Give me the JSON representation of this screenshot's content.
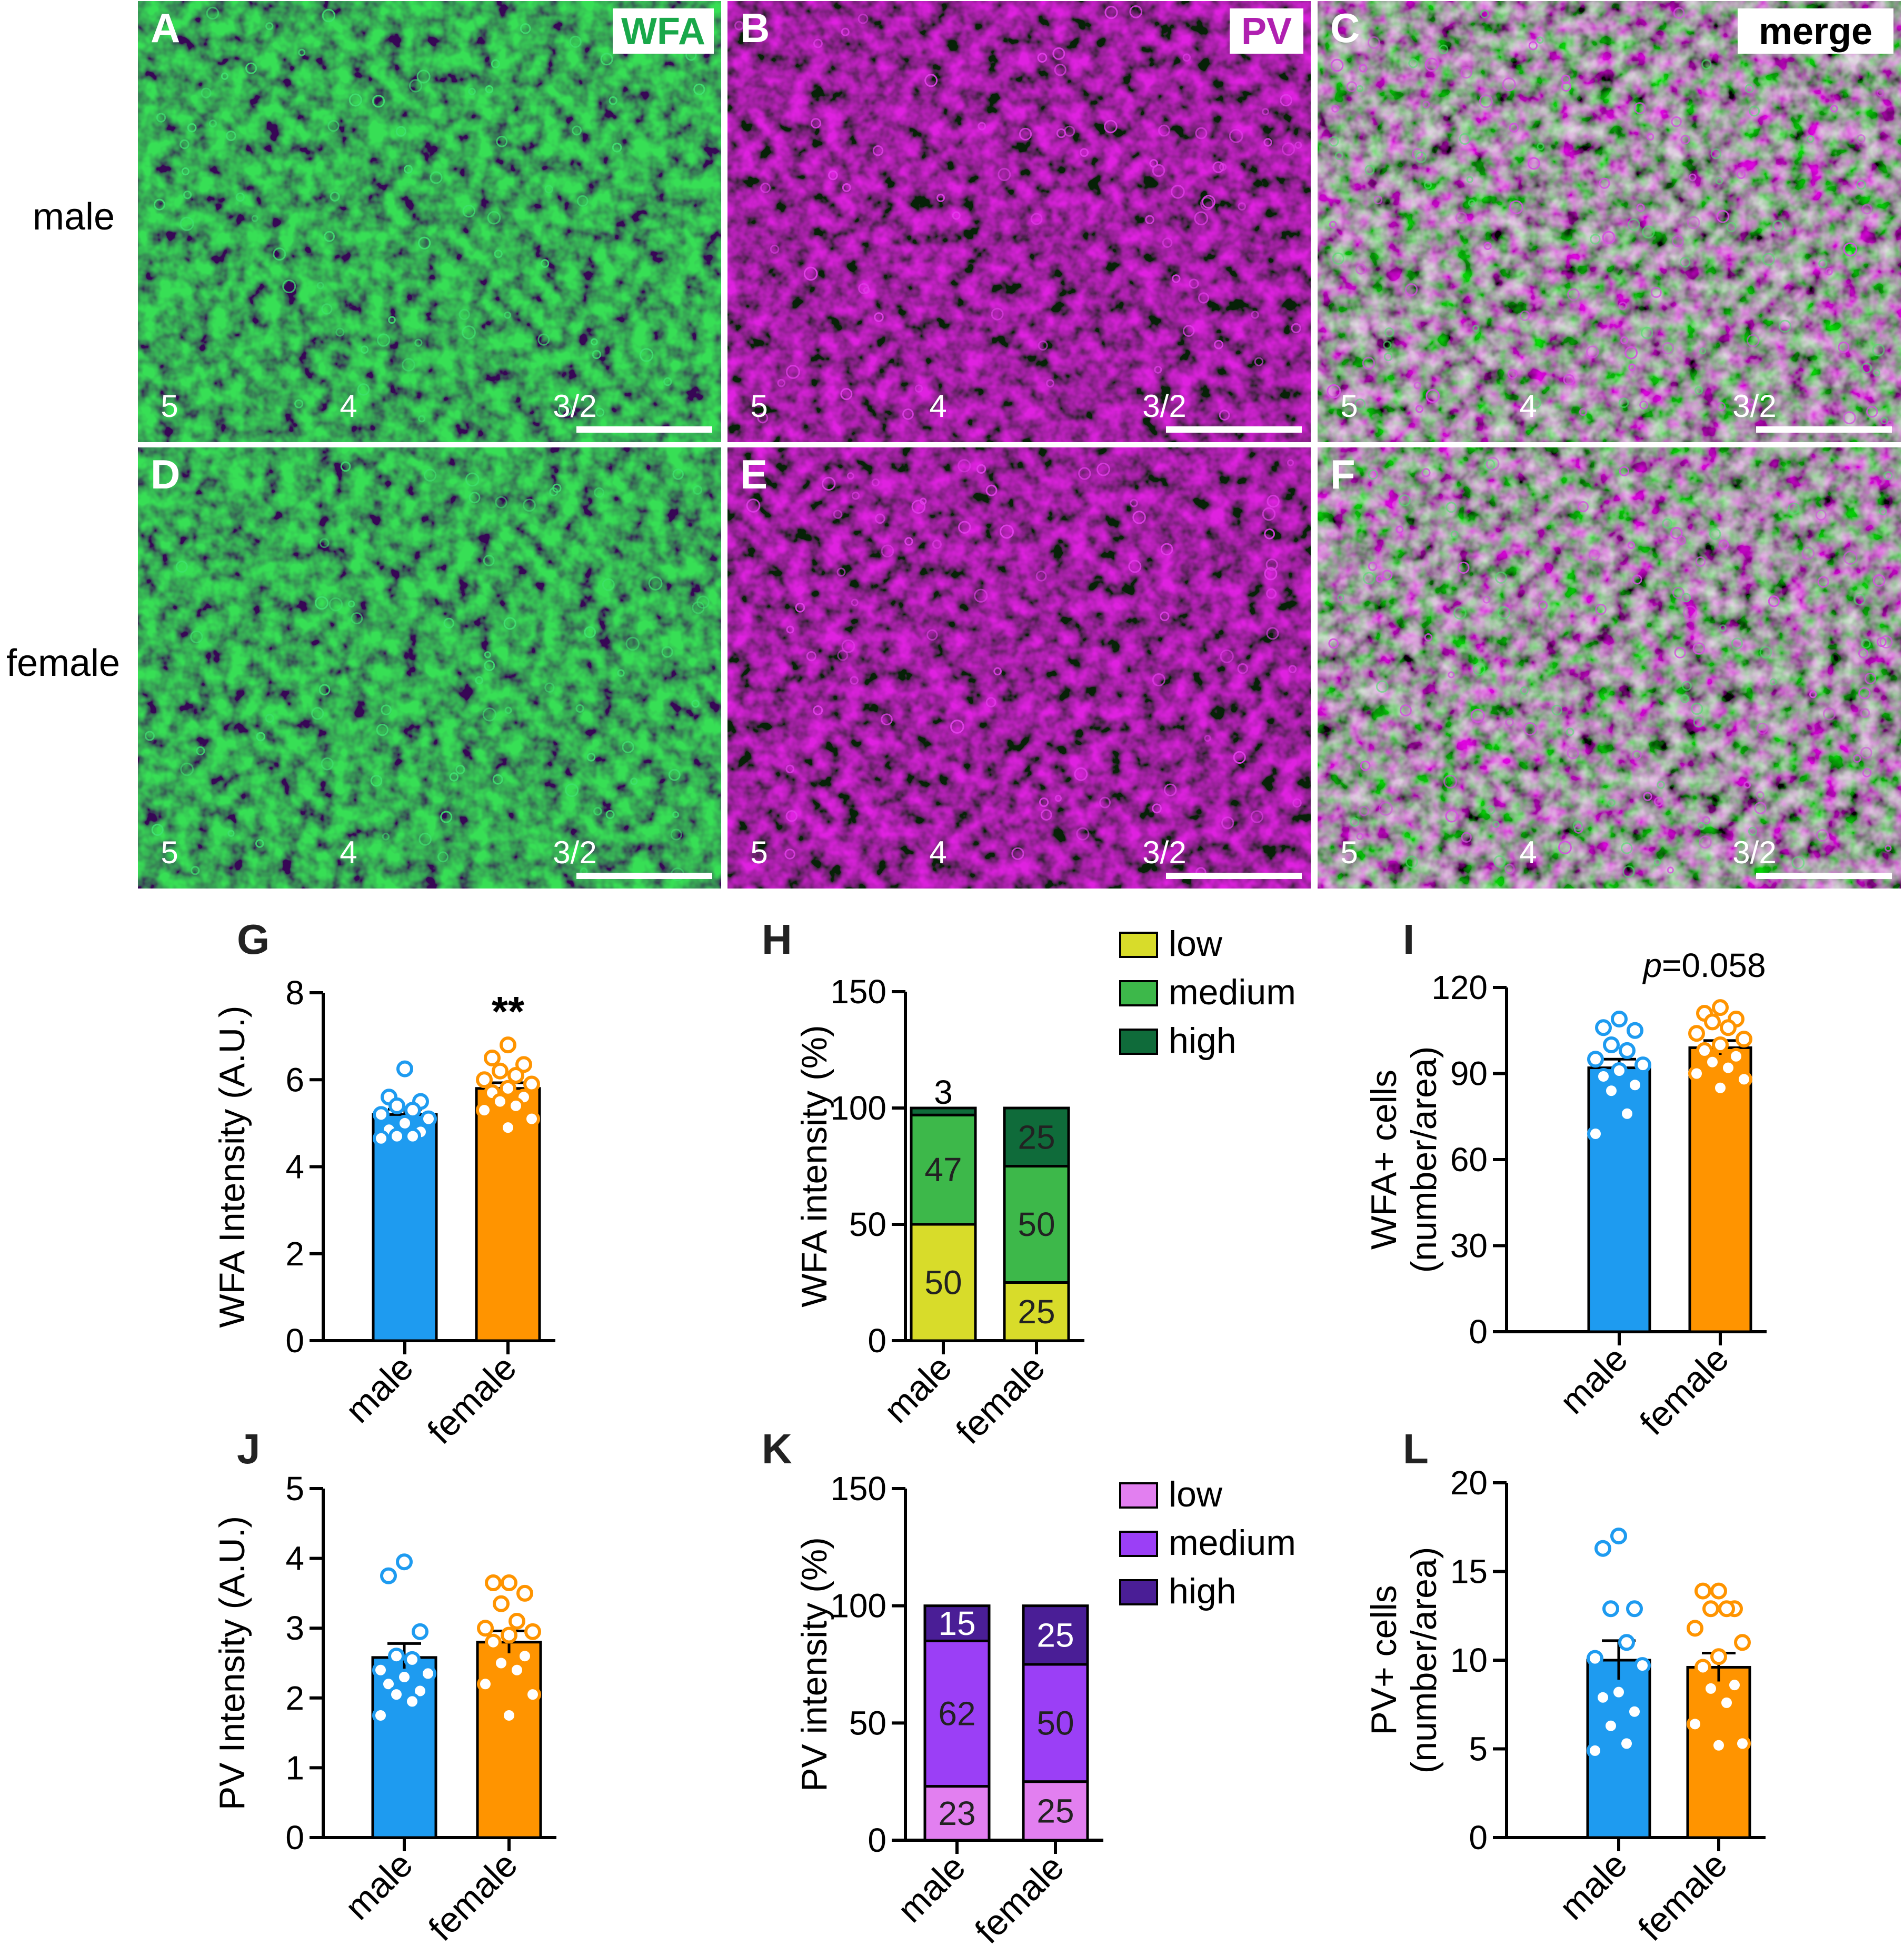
{
  "colors": {
    "male": "#1e9bf0",
    "female": "#ff9400",
    "wfa_low": "#d8dc2a",
    "wfa_medium": "#3db84a",
    "wfa_high": "#0f6b3a",
    "pv_low": "#e27ff0",
    "pv_medium": "#9b3ff6",
    "pv_high": "#4a1e96",
    "wfa_label": "#19a84a",
    "pv_label": "#b020b0"
  },
  "micrographs": {
    "row_labels": [
      "male",
      "female"
    ],
    "panels": [
      {
        "letter": "A",
        "channel": "WFA",
        "stain": "green",
        "layers": [
          "5",
          "4",
          "3/2"
        ]
      },
      {
        "letter": "B",
        "channel": "PV",
        "stain": "magenta",
        "layers": [
          "5",
          "4",
          "3/2"
        ]
      },
      {
        "letter": "C",
        "channel": "merge",
        "stain": "merge",
        "layers": [
          "5",
          "4",
          "3/2"
        ]
      },
      {
        "letter": "D",
        "channel": "",
        "stain": "green",
        "layers": [
          "5",
          "4",
          "3/2"
        ]
      },
      {
        "letter": "E",
        "channel": "",
        "stain": "magenta",
        "layers": [
          "5",
          "4",
          "3/2"
        ]
      },
      {
        "letter": "F",
        "channel": "",
        "stain": "merge",
        "layers": [
          "5",
          "4",
          "3/2"
        ]
      }
    ]
  },
  "chart_data": [
    {
      "panel": "G",
      "type": "bar",
      "ylabel": "WFA Intensity (A.U.)",
      "categories": [
        "male",
        "female"
      ],
      "yticks": [
        0,
        2,
        4,
        6,
        8
      ],
      "ylim": [
        0,
        8
      ],
      "means": [
        5.2,
        5.8
      ],
      "sem": [
        0.12,
        0.13
      ],
      "annotation": "**",
      "points": [
        [
          6.25,
          5.6,
          5.5,
          5.4,
          5.3,
          5.2,
          5.1,
          5.0,
          4.85,
          4.8,
          4.7,
          4.7,
          4.65
        ],
        [
          6.8,
          6.5,
          6.35,
          6.2,
          6.1,
          6.0,
          5.9,
          5.8,
          5.7,
          5.6,
          5.5,
          5.4,
          5.3,
          5.1,
          4.9
        ]
      ]
    },
    {
      "panel": "H",
      "type": "stacked_bar",
      "ylabel": "WFA intensity (%)",
      "categories": [
        "male",
        "female"
      ],
      "yticks": [
        0,
        50,
        100,
        150
      ],
      "ylim": [
        0,
        150
      ],
      "series": [
        {
          "name": "low",
          "values": [
            50,
            25
          ]
        },
        {
          "name": "medium",
          "values": [
            47,
            50
          ]
        },
        {
          "name": "high",
          "values": [
            3,
            25
          ]
        }
      ],
      "legend": [
        "low",
        "medium",
        "high"
      ]
    },
    {
      "panel": "I",
      "type": "bar",
      "ylabel": "WFA+ cells (number/area)",
      "categories": [
        "male",
        "female"
      ],
      "yticks": [
        0,
        30,
        60,
        90,
        120
      ],
      "ylim": [
        0,
        120
      ],
      "means": [
        92,
        99
      ],
      "sem": [
        3,
        2.5
      ],
      "annotation": "p=0.058",
      "points": [
        [
          109,
          106,
          105,
          100,
          98,
          95,
          93,
          91,
          89,
          86,
          84,
          76,
          69
        ],
        [
          113,
          111,
          109,
          108,
          106,
          104,
          102,
          100,
          98,
          96,
          94,
          92,
          90,
          88,
          85
        ]
      ]
    },
    {
      "panel": "J",
      "type": "bar",
      "ylabel": "PV Intensity (A.U.)",
      "categories": [
        "male",
        "female"
      ],
      "yticks": [
        0,
        1,
        2,
        3,
        4,
        5
      ],
      "ylim": [
        0,
        5
      ],
      "means": [
        2.58,
        2.8
      ],
      "sem": [
        0.2,
        0.16
      ],
      "points": [
        [
          3.95,
          3.75,
          2.95,
          2.55,
          2.4,
          2.35,
          2.3,
          2.2,
          2.1,
          2.05,
          1.95,
          1.75,
          2.6
        ],
        [
          3.65,
          3.65,
          3.5,
          3.35,
          3.1,
          3.0,
          2.9,
          2.8,
          2.6,
          2.5,
          2.4,
          2.2,
          2.05,
          1.75,
          2.95
        ]
      ]
    },
    {
      "panel": "K",
      "type": "stacked_bar",
      "ylabel": "PV intensity (%)",
      "categories": [
        "male",
        "female"
      ],
      "yticks": [
        0,
        50,
        100,
        150
      ],
      "ylim": [
        0,
        150
      ],
      "series": [
        {
          "name": "low",
          "values": [
            23,
            25
          ]
        },
        {
          "name": "medium",
          "values": [
            62,
            50
          ]
        },
        {
          "name": "high",
          "values": [
            15,
            25
          ]
        }
      ],
      "legend": [
        "low",
        "medium",
        "high"
      ]
    },
    {
      "panel": "L",
      "type": "bar",
      "ylabel": "PV+ cells (number/area)",
      "categories": [
        "male",
        "female"
      ],
      "yticks": [
        0,
        5,
        10,
        15,
        20
      ],
      "ylim": [
        0,
        20
      ],
      "means": [
        10,
        9.6
      ],
      "sem": [
        1.1,
        0.8
      ],
      "points": [
        [
          17,
          16.3,
          12.9,
          12.9,
          11,
          10.1,
          9.7,
          8.2,
          7.9,
          7.1,
          6.3,
          5.3,
          4.9
        ],
        [
          13.9,
          13.9,
          12.9,
          12.9,
          12.9,
          11.8,
          11,
          10.2,
          9.6,
          8.6,
          8.4,
          7.6,
          6.4,
          5.3,
          5.2
        ]
      ]
    }
  ]
}
